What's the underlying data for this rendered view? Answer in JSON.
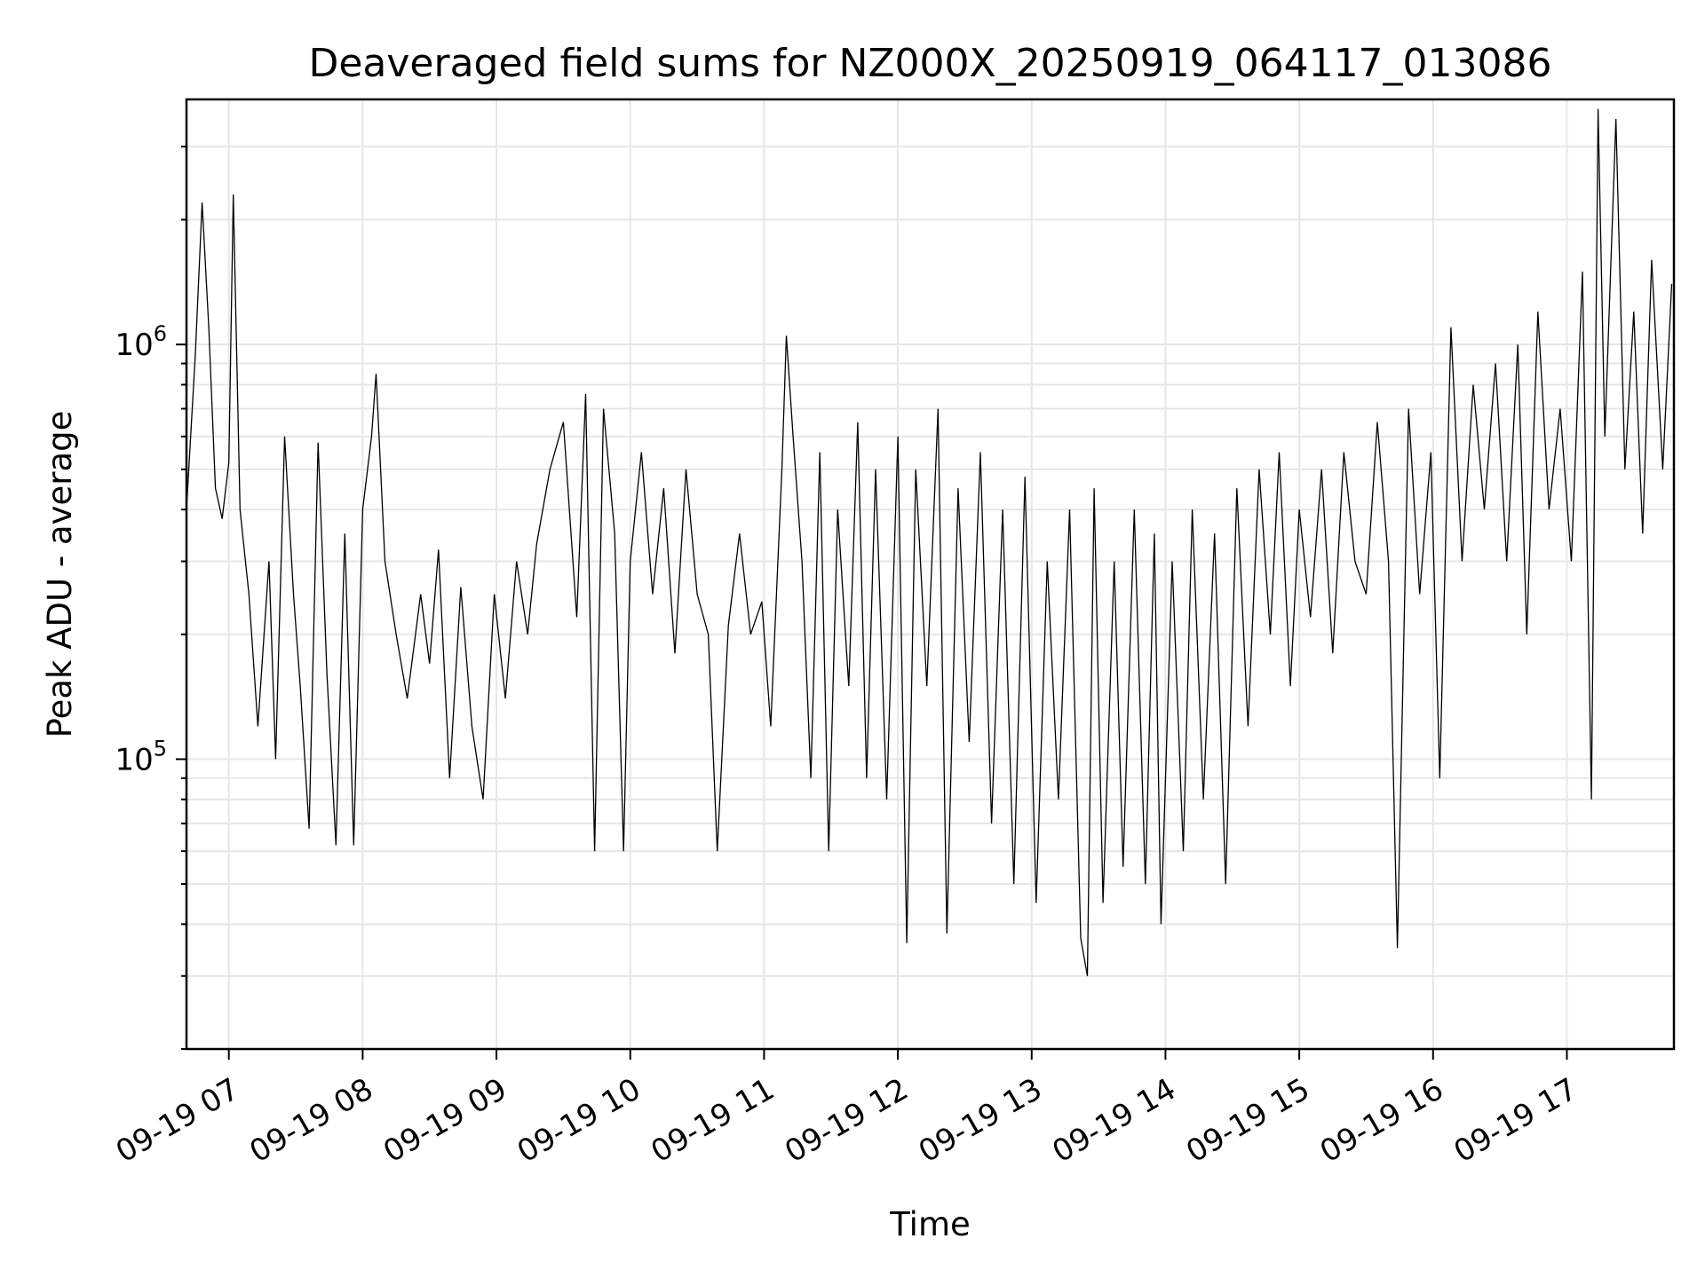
{
  "chart_data": {
    "type": "line",
    "title": "Deaveraged field sums for NZ000X_20250919_064117_013086",
    "xlabel": "Time",
    "ylabel": "Peak ADU - average",
    "yscale": "log",
    "xlim": [
      "2025-09-19 06:41",
      "2025-09-19 17:48"
    ],
    "ylim": [
      20000,
      3900000
    ],
    "grid": true,
    "x_tick_labels": [
      "09-19 07",
      "09-19 08",
      "09-19 09",
      "09-19 10",
      "09-19 11",
      "09-19 12",
      "09-19 13",
      "09-19 14",
      "09-19 15",
      "09-19 16",
      "09-19 17"
    ],
    "x_tick_times": [
      "2025-09-19 07:00",
      "2025-09-19 08:00",
      "2025-09-19 09:00",
      "2025-09-19 10:00",
      "2025-09-19 11:00",
      "2025-09-19 12:00",
      "2025-09-19 13:00",
      "2025-09-19 14:00",
      "2025-09-19 15:00",
      "2025-09-19 16:00",
      "2025-09-19 17:00"
    ],
    "y_ticks": [
      {
        "value": 100000,
        "base": "10",
        "exp": "5"
      },
      {
        "value": 1000000,
        "base": "10",
        "exp": "6"
      }
    ],
    "series": [
      {
        "color": "#000000",
        "points": [
          [
            "06:41",
            400000
          ],
          [
            "06:45",
            950000
          ],
          [
            "06:48",
            2200000
          ],
          [
            "06:51",
            1100000
          ],
          [
            "06:54",
            450000
          ],
          [
            "06:57",
            380000
          ],
          [
            "07:00",
            520000
          ],
          [
            "07:02",
            2300000
          ],
          [
            "07:05",
            400000
          ],
          [
            "07:09",
            250000
          ],
          [
            "07:13",
            120000
          ],
          [
            "07:18",
            300000
          ],
          [
            "07:21",
            100000
          ],
          [
            "07:25",
            600000
          ],
          [
            "07:29",
            250000
          ],
          [
            "07:32",
            150000
          ],
          [
            "07:36",
            68000
          ],
          [
            "07:40",
            580000
          ],
          [
            "07:44",
            160000
          ],
          [
            "07:48",
            62000
          ],
          [
            "07:52",
            350000
          ],
          [
            "07:56",
            62000
          ],
          [
            "08:00",
            400000
          ],
          [
            "08:04",
            600000
          ],
          [
            "08:06",
            850000
          ],
          [
            "08:10",
            300000
          ],
          [
            "08:15",
            200000
          ],
          [
            "08:20",
            140000
          ],
          [
            "08:26",
            250000
          ],
          [
            "08:30",
            170000
          ],
          [
            "08:34",
            320000
          ],
          [
            "08:39",
            90000
          ],
          [
            "08:44",
            260000
          ],
          [
            "08:49",
            120000
          ],
          [
            "08:54",
            80000
          ],
          [
            "08:59",
            250000
          ],
          [
            "09:04",
            140000
          ],
          [
            "09:09",
            300000
          ],
          [
            "09:14",
            200000
          ],
          [
            "09:18",
            330000
          ],
          [
            "09:24",
            500000
          ],
          [
            "09:30",
            650000
          ],
          [
            "09:36",
            220000
          ],
          [
            "09:40",
            760000
          ],
          [
            "09:44",
            60000
          ],
          [
            "09:48",
            700000
          ],
          [
            "09:53",
            350000
          ],
          [
            "09:57",
            60000
          ],
          [
            "10:00",
            300000
          ],
          [
            "10:05",
            550000
          ],
          [
            "10:10",
            250000
          ],
          [
            "10:15",
            450000
          ],
          [
            "10:20",
            180000
          ],
          [
            "10:25",
            500000
          ],
          [
            "10:30",
            250000
          ],
          [
            "10:35",
            200000
          ],
          [
            "10:39",
            60000
          ],
          [
            "10:44",
            210000
          ],
          [
            "10:49",
            350000
          ],
          [
            "10:54",
            200000
          ],
          [
            "10:59",
            240000
          ],
          [
            "11:03",
            120000
          ],
          [
            "11:08",
            500000
          ],
          [
            "11:10",
            1050000
          ],
          [
            "11:13",
            600000
          ],
          [
            "11:17",
            300000
          ],
          [
            "11:21",
            90000
          ],
          [
            "11:25",
            550000
          ],
          [
            "11:29",
            60000
          ],
          [
            "11:33",
            400000
          ],
          [
            "11:38",
            150000
          ],
          [
            "11:42",
            650000
          ],
          [
            "11:46",
            90000
          ],
          [
            "11:50",
            500000
          ],
          [
            "11:55",
            80000
          ],
          [
            "12:00",
            600000
          ],
          [
            "12:04",
            36000
          ],
          [
            "12:08",
            500000
          ],
          [
            "12:13",
            150000
          ],
          [
            "12:18",
            700000
          ],
          [
            "12:22",
            38000
          ],
          [
            "12:27",
            450000
          ],
          [
            "12:32",
            110000
          ],
          [
            "12:37",
            550000
          ],
          [
            "12:42",
            70000
          ],
          [
            "12:47",
            400000
          ],
          [
            "12:52",
            50000
          ],
          [
            "12:57",
            480000
          ],
          [
            "13:02",
            45000
          ],
          [
            "13:07",
            300000
          ],
          [
            "13:12",
            80000
          ],
          [
            "13:17",
            400000
          ],
          [
            "13:22",
            37000
          ],
          [
            "13:25",
            30000
          ],
          [
            "13:28",
            450000
          ],
          [
            "13:32",
            45000
          ],
          [
            "13:37",
            300000
          ],
          [
            "13:41",
            55000
          ],
          [
            "13:46",
            400000
          ],
          [
            "13:51",
            50000
          ],
          [
            "13:55",
            350000
          ],
          [
            "13:58",
            40000
          ],
          [
            "14:03",
            300000
          ],
          [
            "14:08",
            60000
          ],
          [
            "14:12",
            400000
          ],
          [
            "14:17",
            80000
          ],
          [
            "14:22",
            350000
          ],
          [
            "14:27",
            50000
          ],
          [
            "14:32",
            450000
          ],
          [
            "14:37",
            120000
          ],
          [
            "14:42",
            500000
          ],
          [
            "14:47",
            200000
          ],
          [
            "14:51",
            550000
          ],
          [
            "14:56",
            150000
          ],
          [
            "15:00",
            400000
          ],
          [
            "15:05",
            220000
          ],
          [
            "15:10",
            500000
          ],
          [
            "15:15",
            180000
          ],
          [
            "15:20",
            550000
          ],
          [
            "15:25",
            300000
          ],
          [
            "15:30",
            250000
          ],
          [
            "15:35",
            650000
          ],
          [
            "15:40",
            300000
          ],
          [
            "15:44",
            35000
          ],
          [
            "15:49",
            700000
          ],
          [
            "15:54",
            250000
          ],
          [
            "15:59",
            550000
          ],
          [
            "16:03",
            90000
          ],
          [
            "16:08",
            1100000
          ],
          [
            "16:13",
            300000
          ],
          [
            "16:18",
            800000
          ],
          [
            "16:23",
            400000
          ],
          [
            "16:28",
            900000
          ],
          [
            "16:33",
            300000
          ],
          [
            "16:38",
            1000000
          ],
          [
            "16:42",
            200000
          ],
          [
            "16:47",
            1200000
          ],
          [
            "16:52",
            400000
          ],
          [
            "16:57",
            700000
          ],
          [
            "17:02",
            300000
          ],
          [
            "17:07",
            1500000
          ],
          [
            "17:11",
            80000
          ],
          [
            "17:14",
            3700000
          ],
          [
            "17:17",
            600000
          ],
          [
            "17:22",
            3500000
          ],
          [
            "17:26",
            500000
          ],
          [
            "17:30",
            1200000
          ],
          [
            "17:34",
            350000
          ],
          [
            "17:38",
            1600000
          ],
          [
            "17:43",
            500000
          ],
          [
            "17:47",
            1400000
          ]
        ]
      }
    ]
  }
}
